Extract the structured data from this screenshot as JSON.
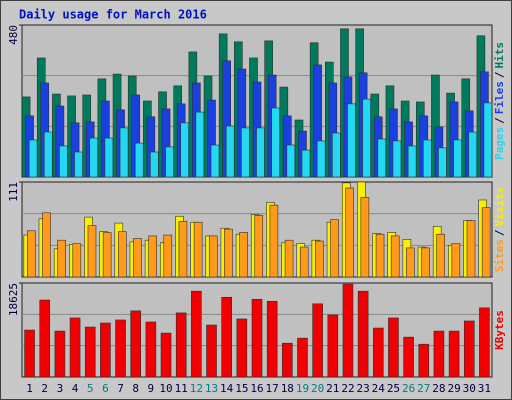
{
  "chart_data": {
    "type": "bar",
    "title": "Daily usage for March 2016",
    "categories": [
      "1",
      "2",
      "3",
      "4",
      "5",
      "6",
      "7",
      "8",
      "9",
      "10",
      "11",
      "12",
      "13",
      "14",
      "15",
      "16",
      "17",
      "18",
      "19",
      "20",
      "21",
      "22",
      "23",
      "24",
      "25",
      "26",
      "27",
      "28",
      "29",
      "30",
      "31"
    ],
    "category_colors": [
      "#000040",
      "#000040",
      "#000040",
      "#000040",
      "#008080",
      "#008080",
      "#000040",
      "#000040",
      "#000040",
      "#000040",
      "#000040",
      "#008080",
      "#008080",
      "#000040",
      "#000040",
      "#000040",
      "#000040",
      "#000040",
      "#008080",
      "#008080",
      "#000040",
      "#000040",
      "#000040",
      "#000040",
      "#000040",
      "#008080",
      "#008080",
      "#000040",
      "#000040",
      "#000040",
      "#000040"
    ],
    "legend_separator": "/",
    "panels": [
      {
        "ylim": [
          0,
          480
        ],
        "yticks": [
          480
        ],
        "series": [
          {
            "name": "Pages",
            "color": "#22d8f2",
            "values": [
              117,
              142,
              98,
              79,
              123,
              123,
              155,
              107,
              79,
              95,
              171,
              205,
              101,
              161,
              155,
              155,
              218,
              101,
              85,
              114,
              139,
              231,
              246,
              120,
              114,
              98,
              117,
              92,
              117,
              142,
              234
            ]
          },
          {
            "name": "Files",
            "color": "#1a40e0",
            "values": [
              193,
              297,
              224,
              171,
              174,
              240,
              212,
              259,
              190,
              215,
              231,
              297,
              243,
              367,
              341,
              300,
              322,
              193,
              145,
              354,
              297,
              316,
              329,
              190,
              215,
              174,
              193,
              158,
              237,
              209,
              332
            ]
          },
          {
            "name": "Hits",
            "color": "#007a5c",
            "values": [
              253,
              376,
              262,
              256,
              259,
              310,
              325,
              319,
              240,
              269,
              288,
              395,
              319,
              452,
              427,
              376,
              430,
              284,
              180,
              424,
              363,
              468,
              468,
              262,
              288,
              240,
              237,
              322,
              265,
              310,
              446
            ]
          }
        ]
      },
      {
        "ylim": [
          0,
          111
        ],
        "yticks": [
          111
        ],
        "series": [
          {
            "name": "Sites",
            "color": "#ff9a1a",
            "values": [
              54,
              75,
              43,
              39,
              60,
              52,
              53,
              45,
              48,
              49,
              65,
              64,
              48,
              56,
              52,
              72,
              84,
              43,
              35,
              42,
              67,
              104,
              93,
              50,
              48,
              34,
              34,
              50,
              39,
              66,
              81
            ]
          },
          {
            "name": "Visits",
            "color": "#f8f000",
            "values": [
              49,
              68,
              33,
              38,
              70,
              53,
              63,
              41,
              43,
              40,
              71,
              64,
              48,
              57,
              50,
              73,
              87,
              40,
              39,
              43,
              64,
              110,
              111,
              51,
              52,
              44,
              35,
              59,
              37,
              66,
              90
            ]
          }
        ]
      },
      {
        "ylim": [
          0,
          18625
        ],
        "yticks": [
          18625
        ],
        "series": [
          {
            "name": "KBytes",
            "color": "#f00000",
            "values": [
              9300,
              15250,
              9100,
              11700,
              9900,
              10700,
              11300,
              13100,
              10900,
              8700,
              12700,
              17000,
              10300,
              15800,
              11500,
              15400,
              15000,
              6700,
              7700,
              14500,
              12300,
              18400,
              17000,
              9700,
              11700,
              7900,
              6500,
              9100,
              9100,
              11100,
              13700
            ]
          }
        ]
      }
    ]
  }
}
